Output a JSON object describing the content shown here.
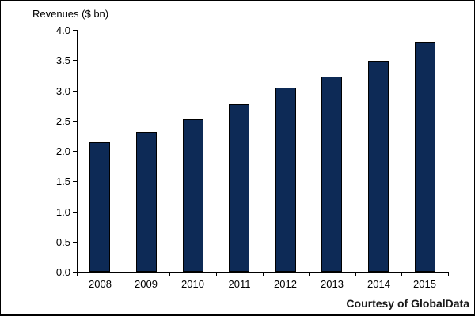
{
  "chart_data": {
    "type": "bar",
    "title": "Revenues ($ bn)",
    "categories": [
      "2008",
      "2009",
      "2010",
      "2011",
      "2012",
      "2013",
      "2014",
      "2015"
    ],
    "values": [
      2.14,
      2.31,
      2.52,
      2.77,
      3.04,
      3.23,
      3.49,
      3.8
    ],
    "xlabel": "",
    "ylabel": "Revenues ($ bn)",
    "ylim": [
      0.0,
      4.0
    ],
    "ytick_labels": [
      "0.0",
      "0.5",
      "1.0",
      "1.5",
      "2.0",
      "2.5",
      "3.0",
      "3.5",
      "4.0"
    ],
    "grid": false,
    "legend": "none",
    "bar_color": "#0d2a56",
    "bar_border_color": "#000000"
  },
  "footer": {
    "courtesy_label": "Courtesy of GlobalData"
  }
}
